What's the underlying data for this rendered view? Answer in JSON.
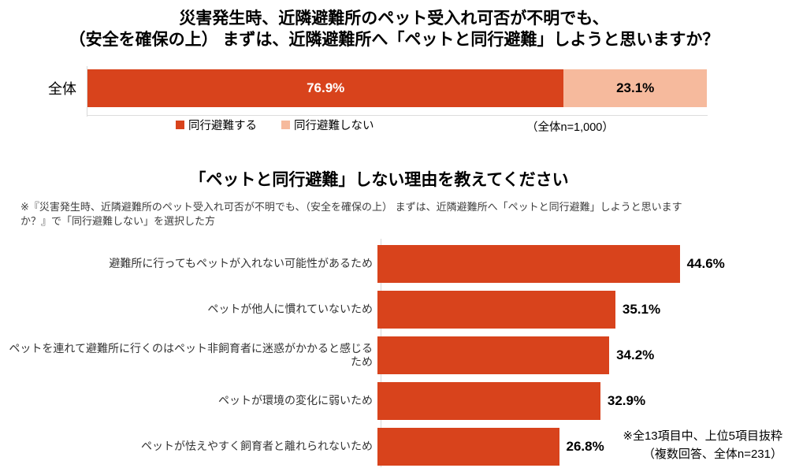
{
  "colors": {
    "primary": "#d8431c",
    "secondary": "#f6ba9d",
    "axis_line": "#d9d9d9"
  },
  "chart_data": [
    {
      "type": "bar",
      "subtype": "stacked-horizontal",
      "title_lines": [
        "災害発生時、近隣避難所のペット受入れ可否が不明でも、",
        "（安全を確保の上） まずは、近隣避難所へ「ペットと同行避難」しようと思いますか？"
      ],
      "categories": [
        "全体"
      ],
      "series": [
        {
          "name": "同行避難する",
          "values": [
            76.9
          ],
          "color": "#d8431c",
          "label_color": "#ffffff"
        },
        {
          "name": "同行避難しない",
          "values": [
            23.1
          ],
          "color": "#f6ba9d",
          "label_color": "#000000"
        }
      ],
      "value_labels": [
        "76.9%",
        "23.1%"
      ],
      "annotation": "（全体n=1,000）",
      "xlim": [
        0,
        100
      ],
      "legend_position": "bottom-center",
      "grid": false
    },
    {
      "type": "bar",
      "subtype": "horizontal",
      "title": "「ペットと同行避難」しない理由を教えてください",
      "note_lines": [
        "※『災害発生時、近隣避難所のペット受入れ可否が不明でも、（安全を確保の上） まずは、近隣避難所へ「ペットと同行避難」しようと思います",
        "か？』で「同行避難しない」を選択した方"
      ],
      "categories": [
        "避難所に行ってもペットが入れない可能性があるため",
        "ペットが他人に慣れていないため",
        "ペットを連れて避難所に行くのはペット非飼育者に迷惑がかかると感じるため",
        "ペットが環境の変化に弱いため",
        "ペットが怯えやすく飼育者と離れられないため"
      ],
      "values": [
        44.6,
        35.1,
        34.2,
        32.9,
        26.8
      ],
      "value_labels": [
        "44.6%",
        "35.1%",
        "34.2%",
        "32.9%",
        "26.8%"
      ],
      "bar_color": "#d8431c",
      "xlim": [
        0,
        50
      ],
      "grid": false,
      "footnote_lines": [
        "※全13項目中、上位5項目抜粋",
        "（複数回答、全体n=231）"
      ]
    }
  ]
}
